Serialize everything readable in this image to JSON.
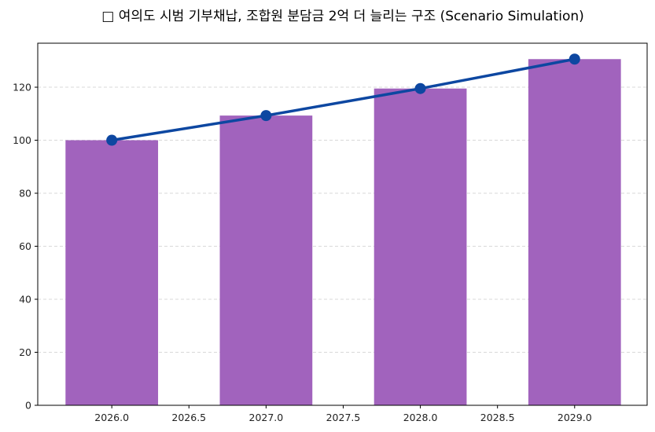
{
  "chart_data": {
    "type": "bar+line",
    "title": "□ 여의도 시범 기부채납, 조합원 분담금 2억 더 늘리는 구조 (Scenario Simulation)",
    "xlabel": "",
    "ylabel": "",
    "categories": [
      2026,
      2027,
      2028,
      2029
    ],
    "bars": {
      "values": [
        100,
        109.3,
        119.5,
        130.6
      ],
      "color": "#a163bd"
    },
    "line": {
      "values": [
        100,
        109.3,
        119.5,
        130.6
      ],
      "color": "#0d47a1",
      "marker": "circle"
    },
    "xlim": [
      2025.52,
      2029.47
    ],
    "ylim": [
      0,
      136.6
    ],
    "xticks": [
      "2026.0",
      "2026.5",
      "2027.0",
      "2027.5",
      "2028.0",
      "2028.5",
      "2029.0"
    ],
    "yticks": [
      "0",
      "20",
      "40",
      "60",
      "80",
      "100",
      "120"
    ],
    "grid": "y, dashed",
    "legend": "none"
  }
}
